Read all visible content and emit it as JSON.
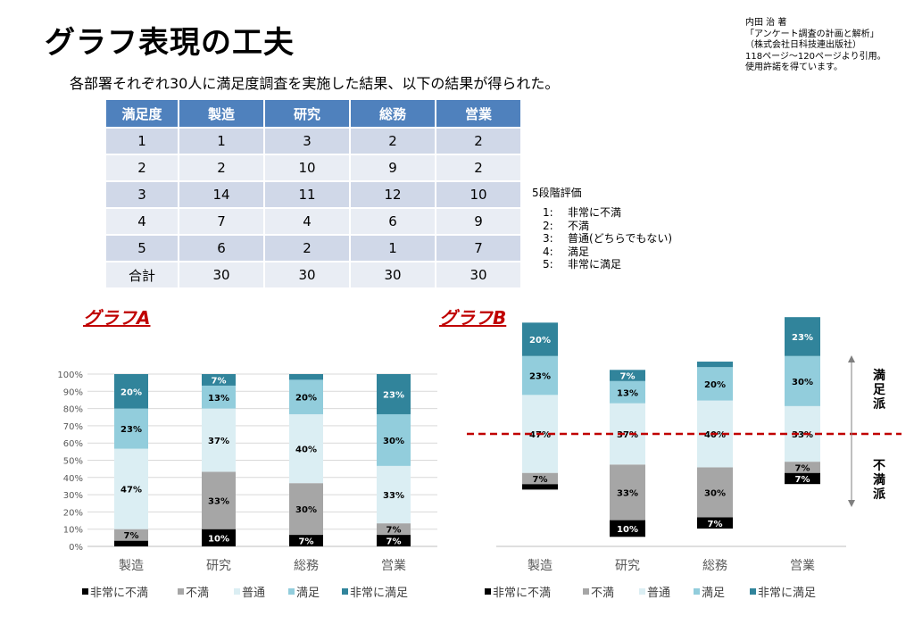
{
  "title": "グラフ表現の工夫",
  "citation": [
    "内田  治  著",
    "「アンケート調査の計画と解析」",
    "（株式会社日科技連出版社）",
    "118ページ～120ページより引用。",
    "使用許諾を得ています。"
  ],
  "subtitle": "各部署それぞれ30人に満足度調査を実施した結果、以下の結果が得られた。",
  "table": {
    "headers": [
      "満足度",
      "製造",
      "研究",
      "総務",
      "営業"
    ],
    "rows": [
      [
        "1",
        "1",
        "3",
        "2",
        "2"
      ],
      [
        "2",
        "2",
        "10",
        "9",
        "2"
      ],
      [
        "3",
        "14",
        "11",
        "12",
        "10"
      ],
      [
        "4",
        "7",
        "4",
        "6",
        "9"
      ],
      [
        "5",
        "6",
        "2",
        "1",
        "7"
      ],
      [
        "合計",
        "30",
        "30",
        "30",
        "30"
      ]
    ]
  },
  "scale": {
    "title": "5段階評価",
    "items": [
      {
        "num": "1:",
        "label": "非常に不満"
      },
      {
        "num": "2:",
        "label": "不満"
      },
      {
        "num": "3:",
        "label": "普通(どちらでもない)"
      },
      {
        "num": "4:",
        "label": "満足"
      },
      {
        "num": "5:",
        "label": "非常に満足"
      }
    ]
  },
  "graph_a_title": "グラフA",
  "graph_b_title": "グラフB",
  "graph_b_side_labels": {
    "upper": "満足派",
    "lower": "不満派"
  },
  "chart_data": [
    {
      "type": "bar",
      "stacked": true,
      "percent": true,
      "title": "グラフA",
      "categories": [
        "製造",
        "研究",
        "総務",
        "営業"
      ],
      "y_ticks": [
        "0%",
        "10%",
        "20%",
        "30%",
        "40%",
        "50%",
        "60%",
        "70%",
        "80%",
        "90%",
        "100%"
      ],
      "ylim": [
        0,
        100
      ],
      "series": [
        {
          "name": "非常に不満",
          "color": "#000000",
          "values": [
            3.3,
            10,
            6.7,
            6.7
          ],
          "labels": [
            "",
            "10%",
            "7%",
            "7%"
          ]
        },
        {
          "name": "不満",
          "color": "#a6a6a6",
          "values": [
            6.7,
            33.3,
            30,
            6.7
          ],
          "labels": [
            "7%",
            "33%",
            "30%",
            "7%"
          ]
        },
        {
          "name": "普通",
          "color": "#dbeef3",
          "values": [
            46.7,
            36.7,
            40,
            33.3
          ],
          "labels": [
            "47%",
            "37%",
            "40%",
            "33%"
          ]
        },
        {
          "name": "満足",
          "color": "#92cddc",
          "values": [
            23.3,
            13.3,
            20,
            30
          ],
          "labels": [
            "23%",
            "13%",
            "20%",
            "30%"
          ]
        },
        {
          "name": "非常に満足",
          "color": "#31849b",
          "values": [
            20,
            6.7,
            3.3,
            23.3
          ],
          "labels": [
            "20%",
            "7%",
            "",
            "23%"
          ]
        }
      ],
      "grid": true,
      "legend": "bottom"
    },
    {
      "type": "bar",
      "stacked": true,
      "diverging": true,
      "title": "グラフB",
      "categories": [
        "製造",
        "研究",
        "総務",
        "営業"
      ],
      "series": [
        {
          "name": "非常に不満",
          "color": "#000000",
          "values": [
            3.3,
            10,
            6.7,
            6.7
          ],
          "labels": [
            "",
            "10%",
            "7%",
            "7%"
          ]
        },
        {
          "name": "不満",
          "color": "#a6a6a6",
          "values": [
            6.7,
            33.3,
            30,
            6.7
          ],
          "labels": [
            "7%",
            "33%",
            "30%",
            "7%"
          ]
        },
        {
          "name": "普通",
          "color": "#dbeef3",
          "values": [
            46.7,
            36.7,
            40,
            33.3
          ],
          "labels": [
            "47%",
            "37%",
            "40%",
            "33%"
          ]
        },
        {
          "name": "満足",
          "color": "#92cddc",
          "values": [
            23.3,
            13.3,
            20,
            30
          ],
          "labels": [
            "23%",
            "13%",
            "20%",
            "30%"
          ]
        },
        {
          "name": "非常に満足",
          "color": "#31849b",
          "values": [
            20,
            6.7,
            3.3,
            23.3
          ],
          "labels": [
            "20%",
            "7%",
            "",
            "23%"
          ]
        }
      ],
      "reference_line": {
        "color": "#c00000",
        "style": "dashed"
      },
      "grid": false,
      "legend": "bottom"
    }
  ]
}
